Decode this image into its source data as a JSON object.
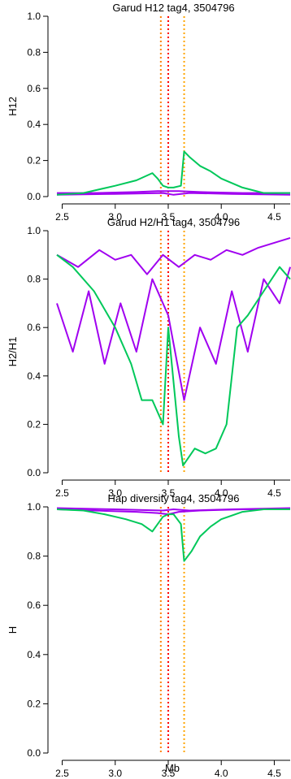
{
  "figure": {
    "xlabel": "Mb"
  },
  "colors": {
    "green": "#00c85a",
    "purple": "#a000f0",
    "red": "#ff0000",
    "orange": "#ffa500"
  },
  "chart_data": [
    {
      "type": "line",
      "title": "Garud H12 tag4, 3504796",
      "ylabel": "H12",
      "xlim": [
        2.45,
        4.65
      ],
      "ylim": [
        0.0,
        1.0
      ],
      "x_ticks": [
        "2.5",
        "3.0",
        "3.5",
        "4.0",
        "4.5"
      ],
      "y_ticks": [
        "0.0",
        "0.2",
        "0.4",
        "0.6",
        "0.8",
        "1.0"
      ],
      "vlines": [
        {
          "x": 3.43,
          "color": "#ff8000",
          "style": "dotted"
        },
        {
          "x": 3.5,
          "color": "#ff0000",
          "style": "dotted"
        },
        {
          "x": 3.65,
          "color": "#ffa500",
          "style": "dotted"
        }
      ],
      "series": [
        {
          "color": "#a000f0",
          "x": [
            2.45,
            2.8,
            3.2,
            3.4,
            3.5,
            3.6,
            3.8,
            4.2,
            4.65
          ],
          "y": [
            0.02,
            0.02,
            0.025,
            0.03,
            0.03,
            0.03,
            0.025,
            0.02,
            0.02
          ]
        },
        {
          "color": "#a000f0",
          "x": [
            2.45,
            3.0,
            3.45,
            3.55,
            3.7,
            4.1,
            4.65
          ],
          "y": [
            0.01,
            0.015,
            0.02,
            0.01,
            0.02,
            0.015,
            0.01
          ]
        },
        {
          "color": "#00c85a",
          "x": [
            2.45,
            2.7,
            3.0,
            3.2,
            3.35,
            3.4,
            3.45,
            3.5,
            3.55,
            3.62,
            3.65,
            3.7,
            3.8,
            3.9,
            4.0,
            4.2,
            4.4,
            4.65
          ],
          "y": [
            0.01,
            0.02,
            0.06,
            0.09,
            0.13,
            0.1,
            0.06,
            0.05,
            0.05,
            0.06,
            0.25,
            0.22,
            0.17,
            0.14,
            0.1,
            0.05,
            0.02,
            0.02
          ]
        }
      ]
    },
    {
      "type": "line",
      "title": "Garud H2/H1 tag4, 3504796",
      "ylabel": "H2/H1",
      "xlim": [
        2.45,
        4.65
      ],
      "ylim": [
        0.0,
        1.0
      ],
      "x_ticks": [
        "2.5",
        "3.0",
        "3.5",
        "4.0",
        "4.5"
      ],
      "y_ticks": [
        "0.0",
        "0.2",
        "0.4",
        "0.6",
        "0.8",
        "1.0"
      ],
      "vlines": [
        {
          "x": 3.43,
          "color": "#ff8000",
          "style": "dotted"
        },
        {
          "x": 3.5,
          "color": "#ff0000",
          "style": "dotted"
        },
        {
          "x": 3.65,
          "color": "#ffa500",
          "style": "dotted"
        }
      ],
      "series": [
        {
          "color": "#a000f0",
          "x": [
            2.45,
            2.6,
            2.75,
            2.9,
            3.05,
            3.2,
            3.35,
            3.5,
            3.65,
            3.8,
            3.95,
            4.1,
            4.25,
            4.4,
            4.55,
            4.65
          ],
          "y": [
            0.7,
            0.5,
            0.75,
            0.45,
            0.7,
            0.5,
            0.8,
            0.65,
            0.3,
            0.6,
            0.45,
            0.75,
            0.5,
            0.8,
            0.7,
            0.85
          ]
        },
        {
          "color": "#a000f0",
          "x": [
            2.45,
            2.65,
            2.85,
            3.0,
            3.15,
            3.3,
            3.45,
            3.6,
            3.75,
            3.9,
            4.05,
            4.2,
            4.35,
            4.5,
            4.65
          ],
          "y": [
            0.9,
            0.85,
            0.92,
            0.88,
            0.9,
            0.82,
            0.9,
            0.85,
            0.9,
            0.88,
            0.92,
            0.9,
            0.93,
            0.95,
            0.97
          ]
        },
        {
          "color": "#00c85a",
          "x": [
            2.45,
            2.6,
            2.8,
            3.0,
            3.15,
            3.25,
            3.35,
            3.45,
            3.5,
            3.6,
            3.64,
            3.75,
            3.85,
            3.95,
            4.05,
            4.15,
            4.25,
            4.4,
            4.55,
            4.65
          ],
          "y": [
            0.9,
            0.85,
            0.75,
            0.6,
            0.45,
            0.3,
            0.3,
            0.2,
            0.6,
            0.15,
            0.03,
            0.1,
            0.08,
            0.1,
            0.2,
            0.6,
            0.65,
            0.75,
            0.85,
            0.8
          ]
        }
      ]
    },
    {
      "type": "line",
      "title": "Hap diversity tag4, 3504796",
      "ylabel": "H",
      "xlim": [
        2.45,
        4.65
      ],
      "ylim": [
        0.0,
        1.0
      ],
      "x_ticks": [
        "2.5",
        "3.0",
        "3.5",
        "4.0",
        "4.5"
      ],
      "y_ticks": [
        "0.0",
        "0.2",
        "0.4",
        "0.6",
        "0.8",
        "1.0"
      ],
      "vlines": [
        {
          "x": 3.43,
          "color": "#ff8000",
          "style": "dotted"
        },
        {
          "x": 3.5,
          "color": "#ff0000",
          "style": "dotted"
        },
        {
          "x": 3.65,
          "color": "#ffa500",
          "style": "dotted"
        }
      ],
      "series": [
        {
          "color": "#a000f0",
          "x": [
            2.45,
            2.8,
            3.2,
            3.4,
            3.5,
            3.6,
            3.8,
            4.2,
            4.65
          ],
          "y": [
            0.99,
            0.985,
            0.98,
            0.975,
            0.97,
            0.98,
            0.985,
            0.99,
            0.99
          ]
        },
        {
          "color": "#a000f0",
          "x": [
            2.45,
            3.0,
            3.45,
            3.55,
            3.7,
            4.1,
            4.65
          ],
          "y": [
            0.995,
            0.99,
            0.985,
            0.99,
            0.985,
            0.99,
            0.995
          ]
        },
        {
          "color": "#00c85a",
          "x": [
            2.45,
            2.7,
            2.9,
            3.1,
            3.25,
            3.35,
            3.45,
            3.5,
            3.55,
            3.62,
            3.65,
            3.72,
            3.8,
            3.9,
            4.0,
            4.2,
            4.4,
            4.65
          ],
          "y": [
            0.99,
            0.985,
            0.97,
            0.95,
            0.93,
            0.9,
            0.96,
            0.97,
            0.97,
            0.93,
            0.78,
            0.82,
            0.88,
            0.92,
            0.95,
            0.98,
            0.99,
            0.99
          ]
        }
      ]
    }
  ]
}
